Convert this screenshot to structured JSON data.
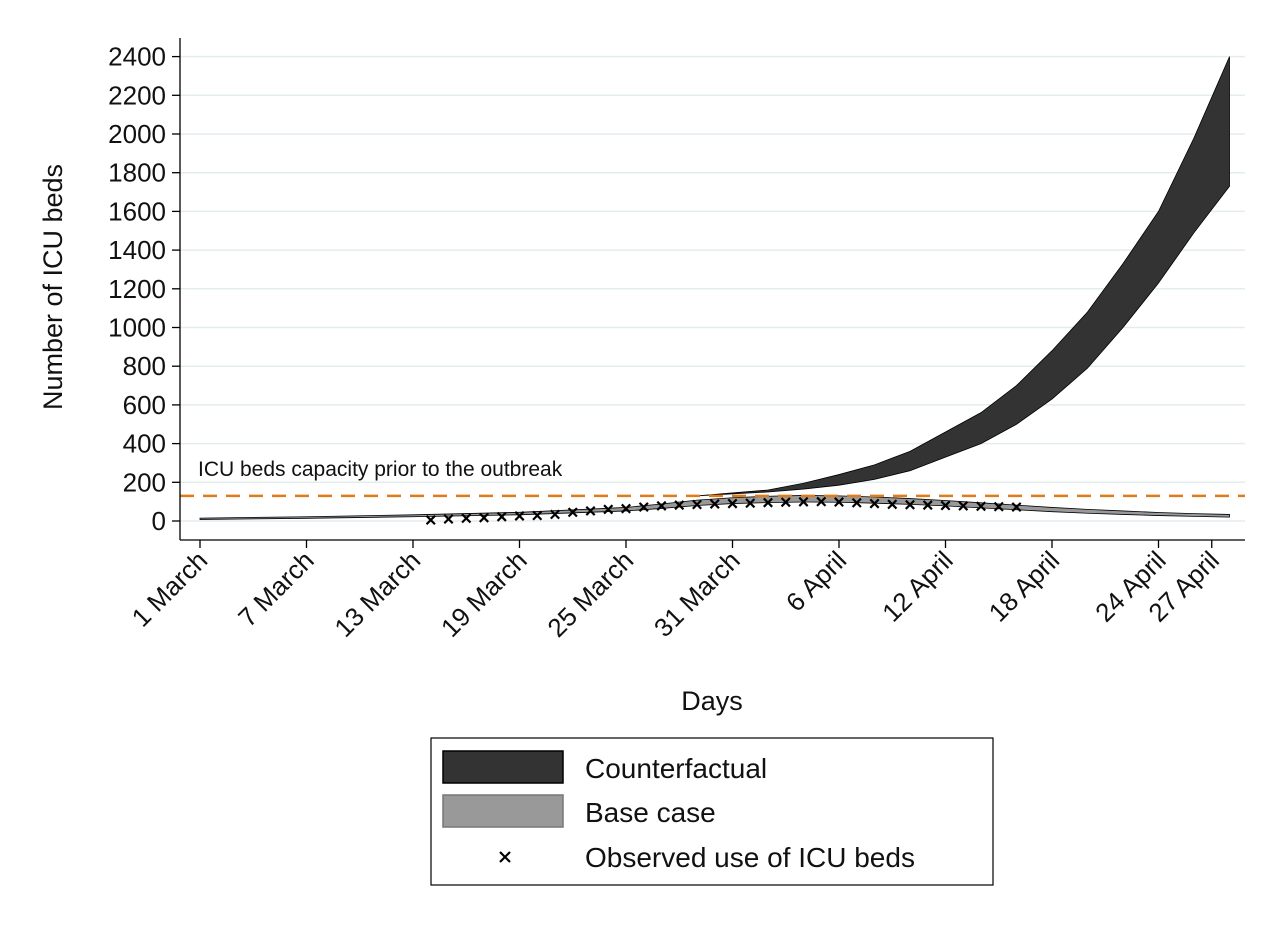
{
  "chart_data": {
    "type": "area",
    "ylabel": "Number of ICU beds",
    "xlabel": "Days",
    "ylim": [
      0,
      2400
    ],
    "yticks": [
      0,
      200,
      400,
      600,
      800,
      1000,
      1200,
      1400,
      1600,
      1800,
      2000,
      2200,
      2400
    ],
    "xticks": [
      {
        "day": 0,
        "label": "1 March"
      },
      {
        "day": 6,
        "label": "7 March"
      },
      {
        "day": 12,
        "label": "13 March"
      },
      {
        "day": 18,
        "label": "19  March"
      },
      {
        "day": 24,
        "label": "25 March"
      },
      {
        "day": 30,
        "label": "31 March"
      },
      {
        "day": 36,
        "label": "6 April"
      },
      {
        "day": 42,
        "label": "12 April"
      },
      {
        "day": 48,
        "label": "18 April"
      },
      {
        "day": 54,
        "label": "24 April"
      },
      {
        "day": 57,
        "label": "27 April"
      }
    ],
    "grid": true,
    "capacity_line": {
      "value": 130,
      "label": "ICU beds capacity prior to the outbreak",
      "color": "#E07B1A"
    },
    "series": [
      {
        "name": "Counterfactual",
        "color": "#333333",
        "x": [
          28,
          30,
          32,
          34,
          36,
          38,
          40,
          42,
          44,
          46,
          48,
          50,
          52,
          54,
          56,
          58
        ],
        "lower": [
          130,
          140,
          150,
          165,
          185,
          215,
          260,
          330,
          400,
          500,
          630,
          790,
          1000,
          1230,
          1490,
          1730
        ],
        "upper": [
          130,
          145,
          160,
          195,
          240,
          290,
          360,
          460,
          560,
          700,
          880,
          1080,
          1330,
          1600,
          1980,
          2400
        ]
      },
      {
        "name": "Base case",
        "color": "#999999",
        "x": [
          0,
          6,
          12,
          18,
          24,
          26,
          28,
          30,
          32,
          34,
          36,
          38,
          40,
          42,
          44,
          46,
          48,
          50,
          52,
          54,
          56,
          58
        ],
        "lower": [
          8,
          14,
          22,
          32,
          52,
          65,
          80,
          90,
          95,
          98,
          97,
          92,
          86,
          78,
          68,
          58,
          48,
          40,
          34,
          28,
          24,
          20
        ],
        "upper": [
          15,
          22,
          32,
          45,
          70,
          88,
          108,
          120,
          128,
          132,
          130,
          124,
          116,
          106,
          94,
          82,
          70,
          60,
          52,
          44,
          38,
          34
        ]
      },
      {
        "name": "Observed use of ICU beds",
        "color": "#000000",
        "marker": "x",
        "x": [
          13,
          14,
          15,
          16,
          17,
          18,
          19,
          20,
          21,
          22,
          23,
          24,
          25,
          26,
          27,
          28,
          29,
          30,
          31,
          32,
          33,
          34,
          35,
          36,
          37,
          38,
          39,
          40,
          41,
          42,
          43,
          44,
          45,
          46
        ],
        "y": [
          5,
          10,
          14,
          17,
          22,
          26,
          28,
          34,
          45,
          52,
          60,
          64,
          72,
          78,
          82,
          85,
          88,
          90,
          92,
          95,
          97,
          99,
          100,
          98,
          94,
          90,
          86,
          84,
          82,
          80,
          78,
          76,
          74,
          72
        ]
      }
    ],
    "legend": {
      "placement": "bottom",
      "entries": [
        "Counterfactual",
        "Base case",
        "Observed use of ICU beds"
      ]
    }
  }
}
